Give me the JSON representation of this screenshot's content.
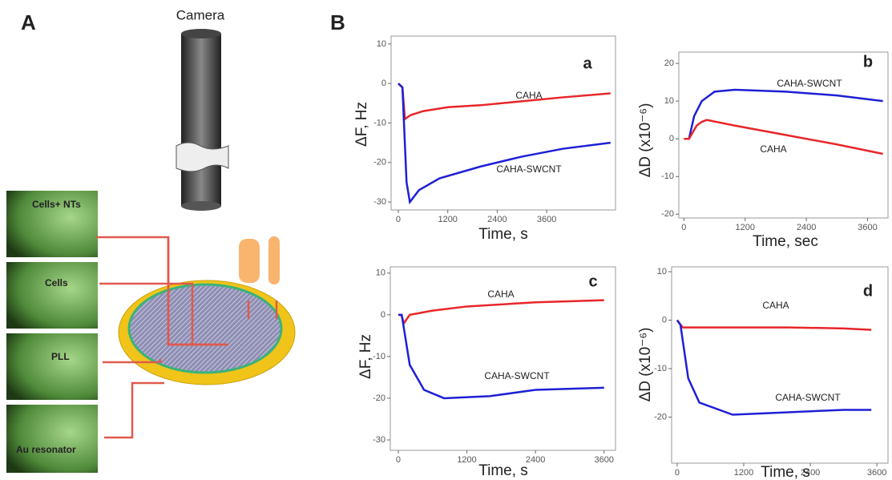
{
  "panel_labels": [
    "A",
    "B"
  ],
  "diagram": {
    "camera": "Camera",
    "images": [
      "Cells+ NTs",
      "Cells",
      "PLL",
      "Au resonator"
    ]
  },
  "chart_data": [
    {
      "type": "line",
      "title": "a",
      "xlabel": "Time, s",
      "ylabel": "ΔF, Hz",
      "xlim": [
        -175,
        5270
      ],
      "xticks": [
        0,
        1200,
        2400,
        3600
      ],
      "ylim": [
        -32,
        12
      ],
      "yticks": [
        10,
        0,
        -10,
        -20,
        -30
      ],
      "series": [
        {
          "name": "CAHA",
          "color": "#e8262a",
          "x": [
            0,
            100,
            160,
            300,
            600,
            1200,
            2000,
            3000,
            4000,
            5150
          ],
          "values": [
            0,
            -1,
            -9,
            -8,
            -7,
            -6,
            -5.5,
            -4.5,
            -3.5,
            -2.5
          ]
        },
        {
          "name": "CAHA-SWCNT",
          "color": "#1f1fd6",
          "x": [
            0,
            100,
            200,
            280,
            500,
            1000,
            2000,
            3000,
            4000,
            5150
          ],
          "values": [
            0,
            -1,
            -25,
            -30,
            -27,
            -24,
            -21,
            -18.5,
            -16.5,
            -15
          ]
        }
      ]
    },
    {
      "type": "line",
      "title": "b",
      "xlabel": "Time, sec",
      "ylabel": "ΔD (x10⁻⁶)",
      "xlim": [
        -100,
        4000
      ],
      "xticks": [
        0,
        1200,
        2400,
        3600
      ],
      "ylim": [
        -21,
        23
      ],
      "yticks": [
        20,
        10,
        0,
        -10,
        -20
      ],
      "series": [
        {
          "name": "CAHA-SWCNT",
          "color": "#1f1fd6",
          "x": [
            0,
            100,
            200,
            350,
            600,
            1000,
            2000,
            3000,
            3900
          ],
          "values": [
            0,
            0,
            6,
            10,
            12.5,
            13,
            12.5,
            11.5,
            10
          ]
        },
        {
          "name": "CAHA",
          "color": "#e8262a",
          "x": [
            0,
            100,
            250,
            350,
            450,
            1000,
            2000,
            3000,
            3900
          ],
          "values": [
            0,
            0,
            3.5,
            4.5,
            5,
            3.5,
            1,
            -1.5,
            -4
          ]
        }
      ]
    },
    {
      "type": "line",
      "title": "c",
      "xlabel": "Time, s",
      "ylabel": "ΔF, Hz",
      "xlim": [
        -140,
        3800
      ],
      "xticks": [
        0,
        1200,
        2400,
        3600
      ],
      "ylim": [
        -32.5,
        11.5
      ],
      "yticks": [
        10,
        0,
        -10,
        -20,
        -30
      ],
      "series": [
        {
          "name": "CAHA",
          "color": "#e8262a",
          "x": [
            0,
            50,
            100,
            200,
            600,
            1200,
            2400,
            3600
          ],
          "values": [
            0,
            0,
            -2,
            0,
            1,
            2,
            3,
            3.5
          ]
        },
        {
          "name": "CAHA-SWCNT",
          "color": "#1f1fd6",
          "x": [
            0,
            60,
            200,
            450,
            800,
            1600,
            2400,
            3600
          ],
          "values": [
            0,
            0,
            -12,
            -18,
            -20,
            -19.5,
            -18,
            -17.5
          ]
        }
      ]
    },
    {
      "type": "line",
      "title": "d",
      "xlabel": "Time, s",
      "ylabel": "ΔD (x10⁻⁶)",
      "xlim": [
        -100,
        3800
      ],
      "xticks": [
        0,
        1200,
        2400,
        3600
      ],
      "ylim": [
        -29.5,
        11
      ],
      "yticks": [
        10,
        0,
        -10,
        -20
      ],
      "series": [
        {
          "name": "CAHA",
          "color": "#e8262a",
          "x": [
            0,
            100,
            1000,
            2000,
            3000,
            3500
          ],
          "values": [
            0,
            -1.5,
            -1.5,
            -1.5,
            -1.7,
            -2
          ]
        },
        {
          "name": "CAHA-SWCNT",
          "color": "#1f1fd6",
          "x": [
            0,
            60,
            200,
            400,
            1000,
            2000,
            3000,
            3500
          ],
          "values": [
            0,
            -1,
            -12,
            -17,
            -19.5,
            -19,
            -18.5,
            -18.5
          ]
        }
      ]
    }
  ]
}
